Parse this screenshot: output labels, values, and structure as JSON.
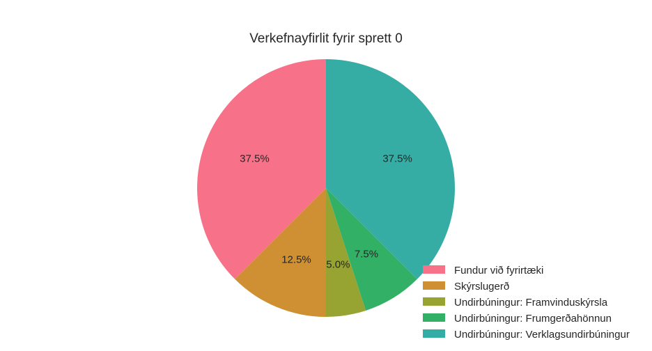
{
  "chart_data": {
    "type": "pie",
    "title": "Verkefnayfirlit fyrir sprett 0",
    "start_angle_deg": 90,
    "direction": "counterclockwise",
    "legend_position": "bottom-right",
    "slices": [
      {
        "label": "Fundur við fyrirtæki",
        "value": 37.5,
        "pct_label": "37.5%",
        "color": "#f77189"
      },
      {
        "label": "Skýrslugerð",
        "value": 12.5,
        "pct_label": "12.5%",
        "color": "#ce9032"
      },
      {
        "label": "Undirbúningur: Framvinduskýrsla",
        "value": 5.0,
        "pct_label": "5.0%",
        "color": "#97a431"
      },
      {
        "label": "Undirbúningur: Frumgerðahönnun",
        "value": 7.5,
        "pct_label": "7.5%",
        "color": "#32b166"
      },
      {
        "label": "Undirbúningur: Verklagsundirbúningur",
        "value": 37.5,
        "pct_label": "37.5%",
        "color": "#36ada4"
      }
    ]
  }
}
